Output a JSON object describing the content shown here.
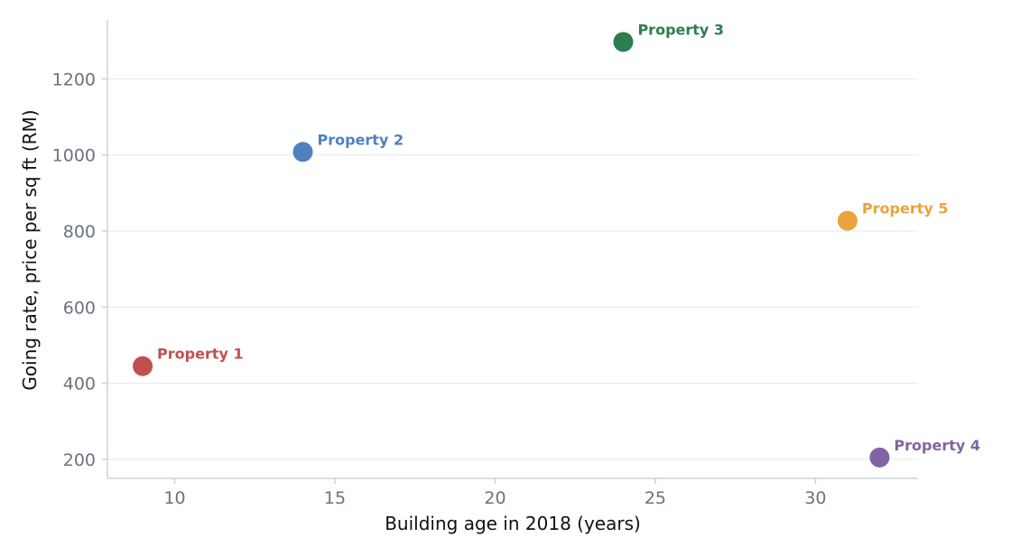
{
  "chart_data": {
    "type": "scatter",
    "title": "",
    "xlabel": "Building age in 2018 (years)",
    "ylabel": "Going rate, price per sq ft (RM)",
    "xlim": [
      7.9,
      33.2
    ],
    "ylim": [
      150,
      1355
    ],
    "xticks": [
      10,
      15,
      20,
      25,
      30
    ],
    "yticks": [
      200,
      400,
      600,
      800,
      1000,
      1200
    ],
    "grid": "horizontal",
    "points": [
      {
        "label": "Property 1",
        "x": 9,
        "y": 445,
        "color": "#c0504d"
      },
      {
        "label": "Property 2",
        "x": 14,
        "y": 1008,
        "color": "#4f81bd"
      },
      {
        "label": "Property 3",
        "x": 24,
        "y": 1297,
        "color": "#2e7d4f"
      },
      {
        "label": "Property 4",
        "x": 32,
        "y": 205,
        "color": "#8064a2"
      },
      {
        "label": "Property 5",
        "x": 31,
        "y": 827,
        "color": "#e8a33d"
      }
    ]
  },
  "colors": {
    "axis": "#c9d3df",
    "grid": "#e5e7eb"
  }
}
